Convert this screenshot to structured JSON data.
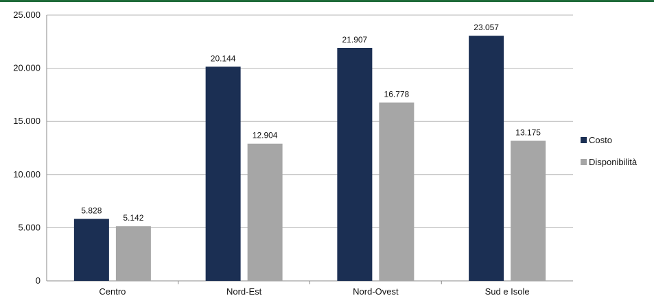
{
  "colors": {
    "accent_border": "#1f6b3a",
    "series_costo": "#1b2f53",
    "series_disponibilita": "#a6a6a6",
    "grid": "#b5b5b5"
  },
  "chart_data": {
    "type": "bar",
    "categories": [
      "Centro",
      "Nord-Est",
      "Nord-Ovest",
      "Sud e Isole"
    ],
    "series": [
      {
        "name": "Costo",
        "values": [
          5828,
          20144,
          21907,
          23057
        ],
        "labels": [
          "5.828",
          "20.144",
          "21.907",
          "23.057"
        ]
      },
      {
        "name": "Disponibilità",
        "values": [
          5142,
          12904,
          16778,
          13175
        ],
        "labels": [
          "5.142",
          "12.904",
          "16.778",
          "13.175"
        ]
      }
    ],
    "ylim": [
      0,
      25000
    ],
    "yticks": [
      0,
      5000,
      10000,
      15000,
      20000,
      25000
    ],
    "ytick_labels": [
      "0",
      "5.000",
      "10.000",
      "15.000",
      "20.000",
      "25.000"
    ],
    "grid": true,
    "legend_position": "right"
  }
}
